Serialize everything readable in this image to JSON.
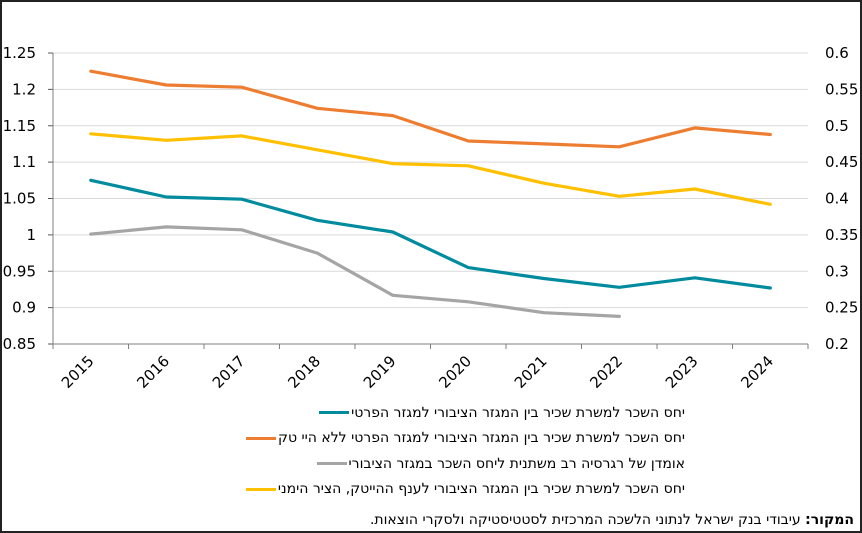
{
  "chart_data": {
    "type": "line",
    "title": "",
    "xlabel": "",
    "ylabel": "",
    "categories": [
      "2015",
      "2016",
      "2017",
      "2018",
      "2019",
      "2020",
      "2021",
      "2022",
      "2023",
      "2024"
    ],
    "y_left": {
      "range": [
        0.85,
        1.25
      ],
      "ticks": [
        1.25,
        1.2,
        1.15,
        1.1,
        1.05,
        1,
        0.95,
        0.9,
        0.85
      ],
      "tick_labels": [
        "1.25",
        "1.2",
        "1.15",
        "1.1",
        "1.05",
        "1",
        "0.95",
        "0.9",
        "0.85"
      ]
    },
    "y_right": {
      "range": [
        0.2,
        0.6
      ],
      "ticks": [
        0.6,
        0.55,
        0.5,
        0.45,
        0.4,
        0.35,
        0.3,
        0.25,
        0.2
      ],
      "tick_labels": [
        "0.6",
        "0.55",
        "0.5",
        "0.45",
        "0.4",
        "0.35",
        "0.3",
        "0.25",
        "0.2"
      ]
    },
    "grid": true,
    "legend_position": "bottom",
    "series": [
      {
        "name": "יחס השכר למשרת שכיר בין המגזר הציבורי למגזר הפרטי",
        "axis": "left",
        "color": "#008B9E",
        "values": [
          1.075,
          1.052,
          1.049,
          1.02,
          1.004,
          0.955,
          0.94,
          0.928,
          0.941,
          0.927
        ]
      },
      {
        "name": "יחס השכר למשרת שכיר בין המגזר הציבורי למגזר הפרטי ללא היי טק",
        "axis": "left",
        "color": "#ED7D31",
        "values": [
          1.225,
          1.206,
          1.203,
          1.174,
          1.164,
          1.129,
          1.125,
          1.121,
          1.147,
          1.138
        ]
      },
      {
        "name": "אומדן של רגרסיה רב משתנית ליחס השכר במגזר הציבורי",
        "axis": "right",
        "color": "#A5A5A5",
        "values": [
          0.351,
          0.361,
          0.357,
          0.325,
          0.267,
          0.258,
          0.243,
          0.238,
          null,
          null
        ]
      },
      {
        "name": "יחס השכר למשרת שכיר בין המגזר הציבורי לענף ההייטק, הציר הימני",
        "axis": "right",
        "color": "#FFC000",
        "values": [
          0.489,
          0.48,
          0.486,
          0.467,
          0.448,
          0.445,
          0.421,
          0.403,
          0.413,
          0.392
        ]
      }
    ]
  },
  "source": {
    "label": "המקור:",
    "text": " עיבודי בנק ישראל לנתוני הלשכה המרכזית לסטטיסטיקה ולסקרי הוצאות."
  }
}
